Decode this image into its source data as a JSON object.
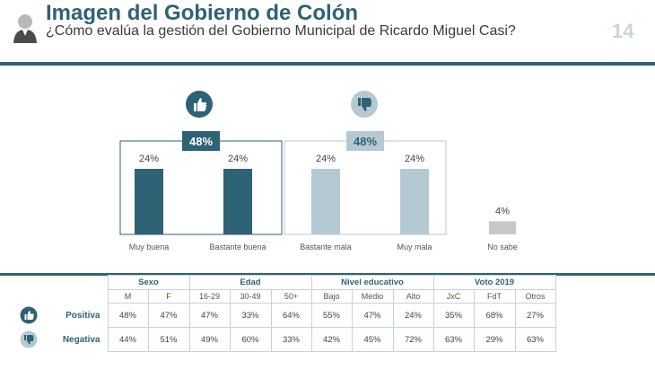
{
  "header": {
    "title": "Imagen del Gobierno de Colón",
    "subtitle": "¿Cómo evalúa la gestión del Gobierno Municipal de Ricardo Miguel Casi?",
    "page_number": "14"
  },
  "colors": {
    "primary": "#2e6275",
    "light": "#b5c9d2",
    "grey": "#c8c8c8"
  },
  "chart_data": {
    "type": "bar",
    "categories": [
      "Muy buena",
      "Bastante buena",
      "Bastante mala",
      "Muy mala",
      "No sabe"
    ],
    "values": [
      24,
      24,
      24,
      24,
      4
    ],
    "value_labels": [
      "24%",
      "24%",
      "24%",
      "24%",
      "4%"
    ],
    "groups": [
      {
        "name": "positive",
        "total_label": "48%",
        "members": [
          0,
          1
        ],
        "icon": "thumbs-up-icon"
      },
      {
        "name": "negative",
        "total_label": "48%",
        "members": [
          2,
          3
        ],
        "icon": "thumbs-down-icon"
      }
    ],
    "ylim": [
      0,
      30
    ]
  },
  "table": {
    "groups": [
      "Sexo",
      "Edad",
      "Nivel educativo",
      "Voto 2019"
    ],
    "subheaders": [
      "M",
      "F",
      "16-29",
      "30-49",
      "50+",
      "Bajo",
      "Medio",
      "Alto",
      "JxC",
      "FdT",
      "Otros"
    ],
    "rows": [
      {
        "label": "Positiva",
        "icon": "thumbs-up-icon",
        "values": [
          "48%",
          "47%",
          "47%",
          "33%",
          "64%",
          "55%",
          "47%",
          "24%",
          "35%",
          "68%",
          "27%"
        ]
      },
      {
        "label": "Negativa",
        "icon": "thumbs-down-icon",
        "values": [
          "44%",
          "51%",
          "49%",
          "60%",
          "33%",
          "42%",
          "45%",
          "72%",
          "63%",
          "29%",
          "63%"
        ]
      }
    ]
  }
}
